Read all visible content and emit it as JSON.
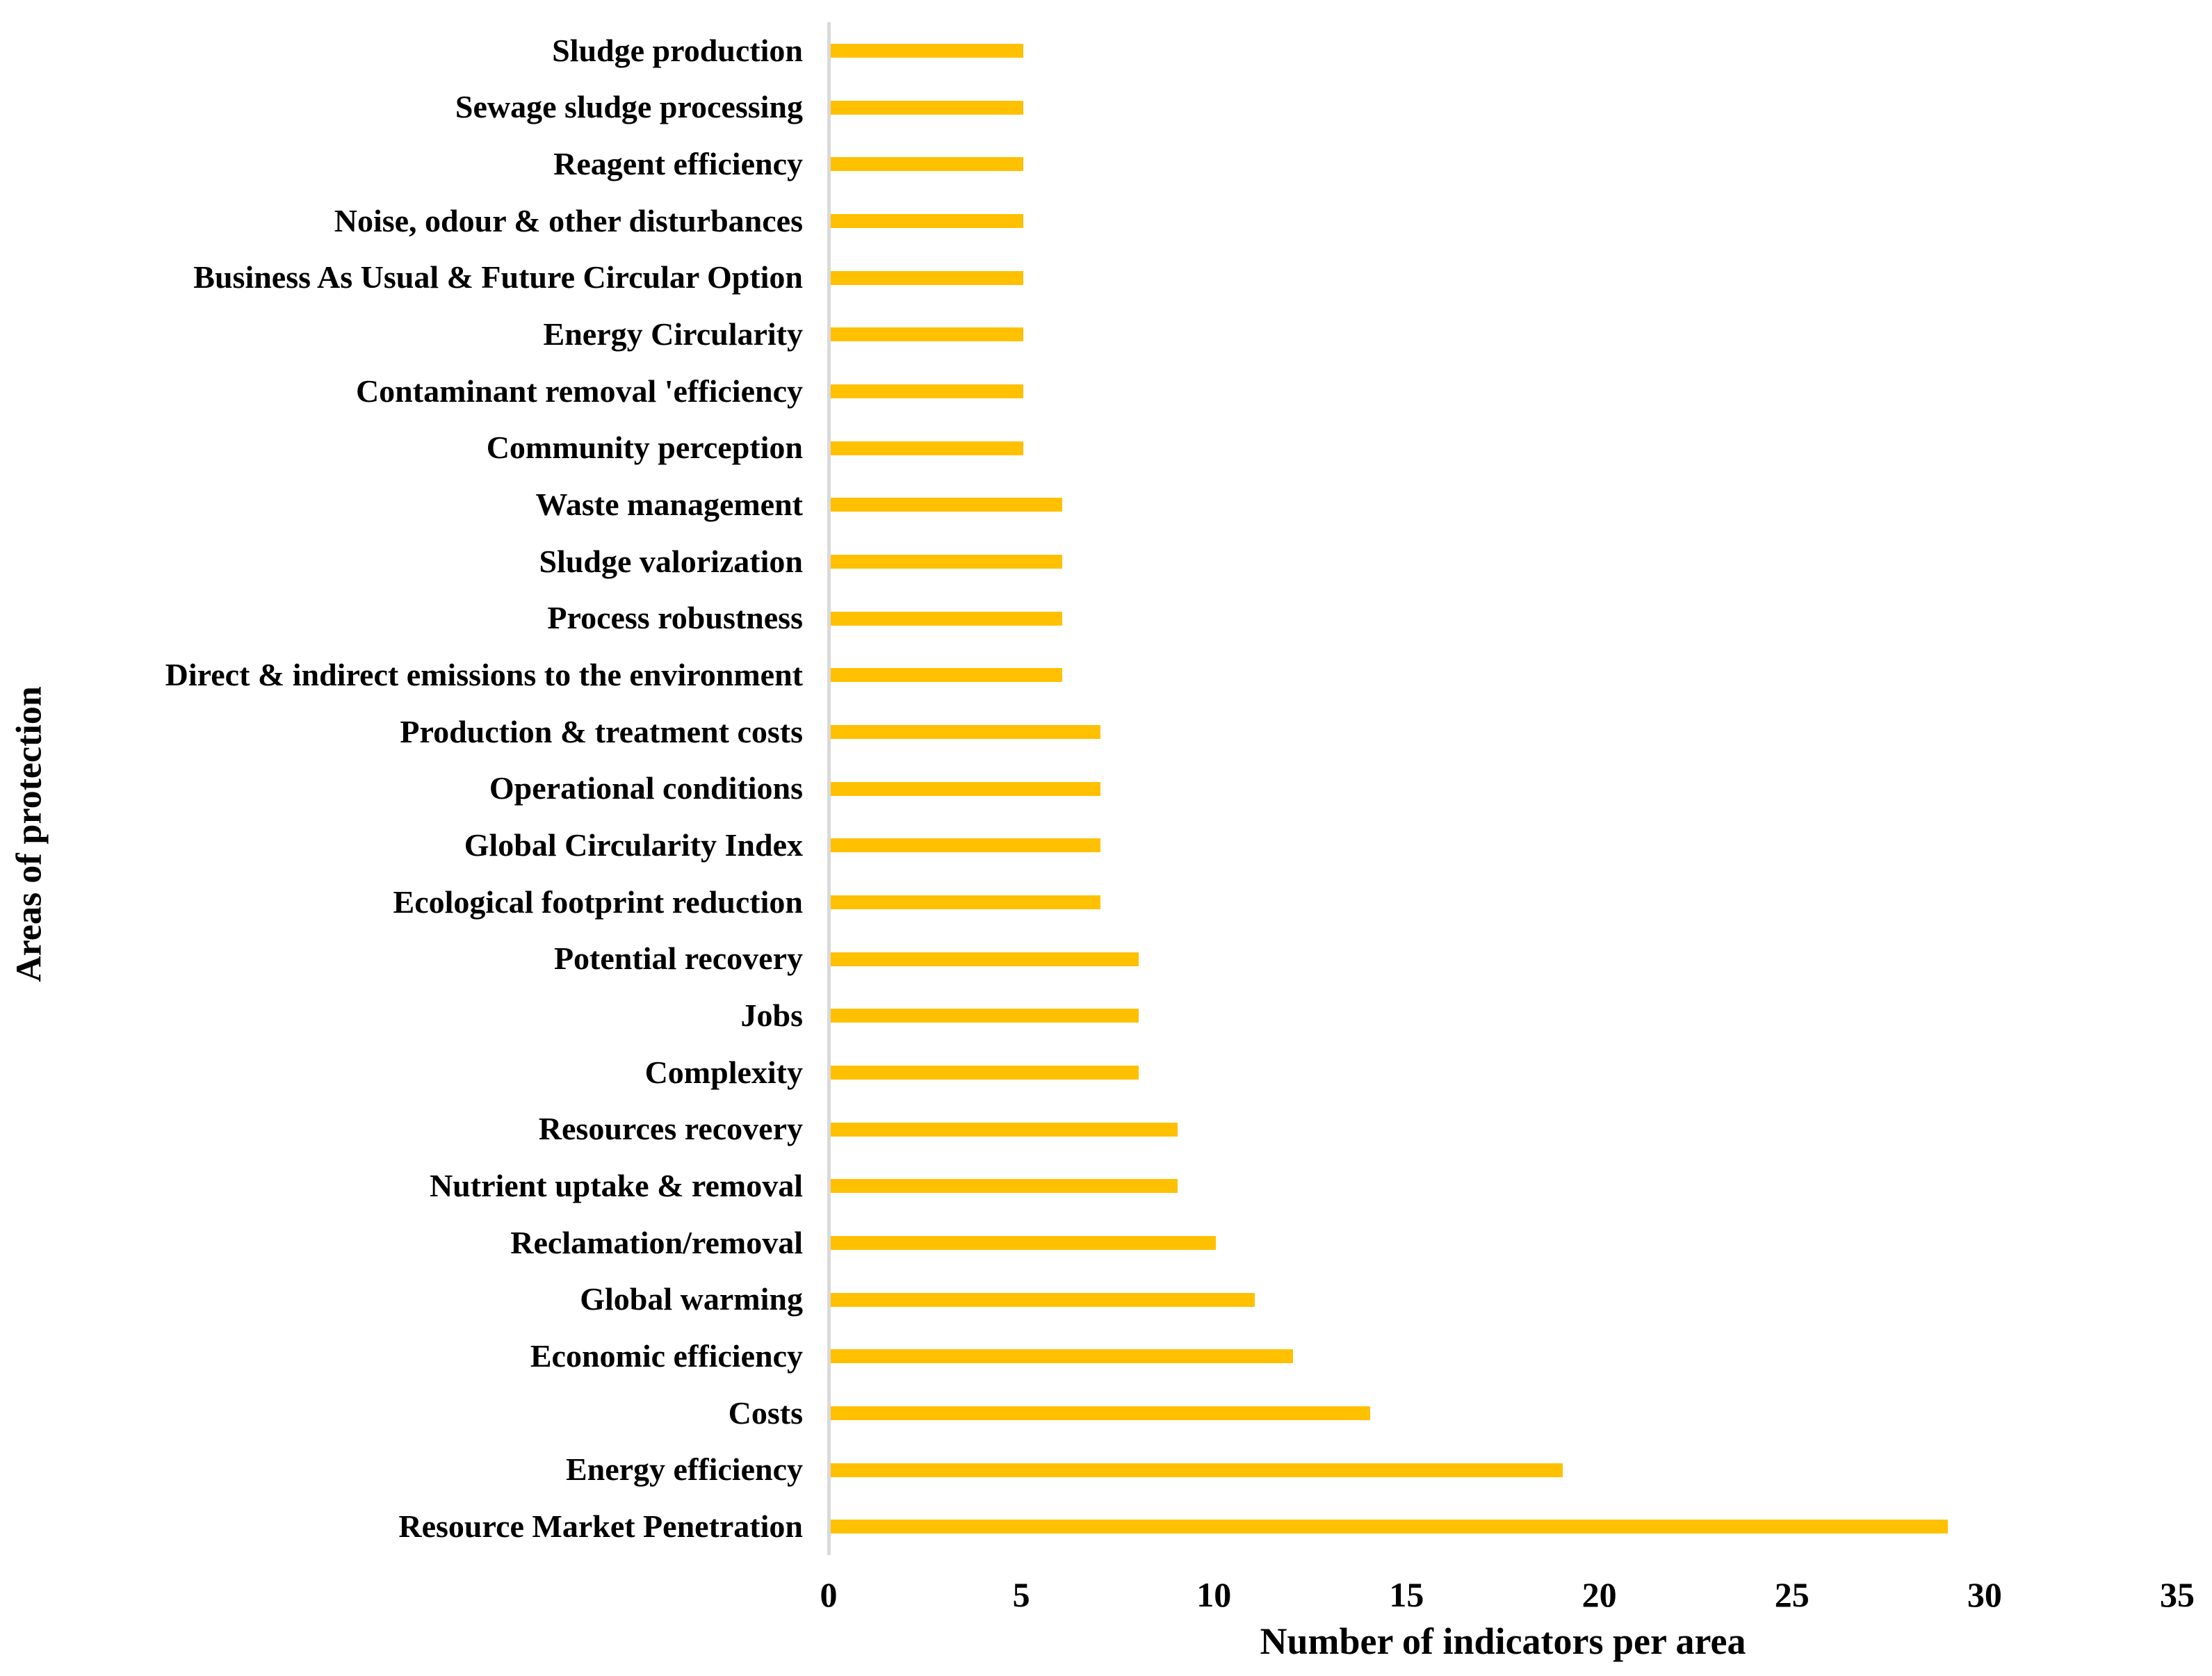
{
  "chart_data": {
    "type": "bar",
    "orientation": "horizontal",
    "title": "",
    "xlabel": "Number of indicators per area",
    "ylabel": "Areas of protection",
    "xlim": [
      0,
      35
    ],
    "xticks": [
      0,
      5,
      10,
      15,
      20,
      25,
      30,
      35
    ],
    "grid": false,
    "legend": false,
    "bar_color": "#FFC000",
    "axis_line_color": "#D9D9D9",
    "categories": [
      "Sludge production",
      "Sewage sludge processing",
      "Reagent efficiency",
      "Noise, odour & other disturbances",
      "Business As Usual & Future Circular Option",
      "Energy Circularity",
      "Contaminant removal 'efficiency",
      "Community perception",
      "Waste management",
      "Sludge valorization",
      "Process robustness",
      "Direct & indirect emissions to the environment",
      "Production & treatment costs",
      "Operational conditions",
      "Global Circularity Index",
      "Ecological footprint reduction",
      "Potential recovery",
      "Jobs",
      "Complexity",
      "Resources recovery",
      "Nutrient uptake & removal",
      "Reclamation/removal",
      "Global warming",
      "Economic efficiency",
      "Costs",
      "Energy efficiency",
      "Resource Market Penetration"
    ],
    "values": [
      5,
      5,
      5,
      5,
      5,
      5,
      5,
      5,
      6,
      6,
      6,
      6,
      7,
      7,
      7,
      7,
      8,
      8,
      8,
      9,
      9,
      10,
      11,
      12,
      14,
      19,
      29
    ]
  }
}
